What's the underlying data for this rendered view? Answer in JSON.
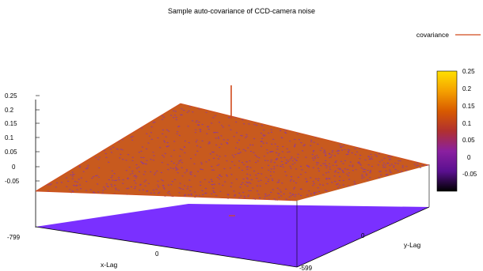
{
  "chart_data": {
    "type": "surface",
    "title": "Sample auto-covariance of CCD-camera noise",
    "xlabel": "x-Lag",
    "ylabel": "y-Lag",
    "legend": {
      "entries": [
        "covariance"
      ],
      "placement": "top-right"
    },
    "z_ticks": [
      "0.25",
      "0.2",
      "0.15",
      "0.1",
      "0.05",
      "0",
      "-0.05"
    ],
    "x_ticks": [
      "-799",
      "0"
    ],
    "y_ticks": [
      "0",
      "-599"
    ],
    "colorbar_ticks": [
      "0.25",
      "0.2",
      "0.15",
      "0.1",
      "0.05",
      "0",
      "-0.05"
    ],
    "zlim": [
      -0.05,
      0.25
    ],
    "clim": [
      -0.05,
      0.25
    ],
    "colorbar_colors": [
      "#ffe000",
      "#f5a000",
      "#d85a00",
      "#b03030",
      "#8a20a0",
      "#5a1090",
      "#000000"
    ],
    "surface_level": 0.0,
    "surface_noise_amplitude": 0.01,
    "peak": {
      "x": 0,
      "y": 0,
      "z": 0.25
    },
    "grid": false,
    "surface_color": "#c85a1e",
    "noise_color": "#8a3aa0",
    "floor_color": "#7a30ff",
    "line_color": "#d04a1c"
  }
}
